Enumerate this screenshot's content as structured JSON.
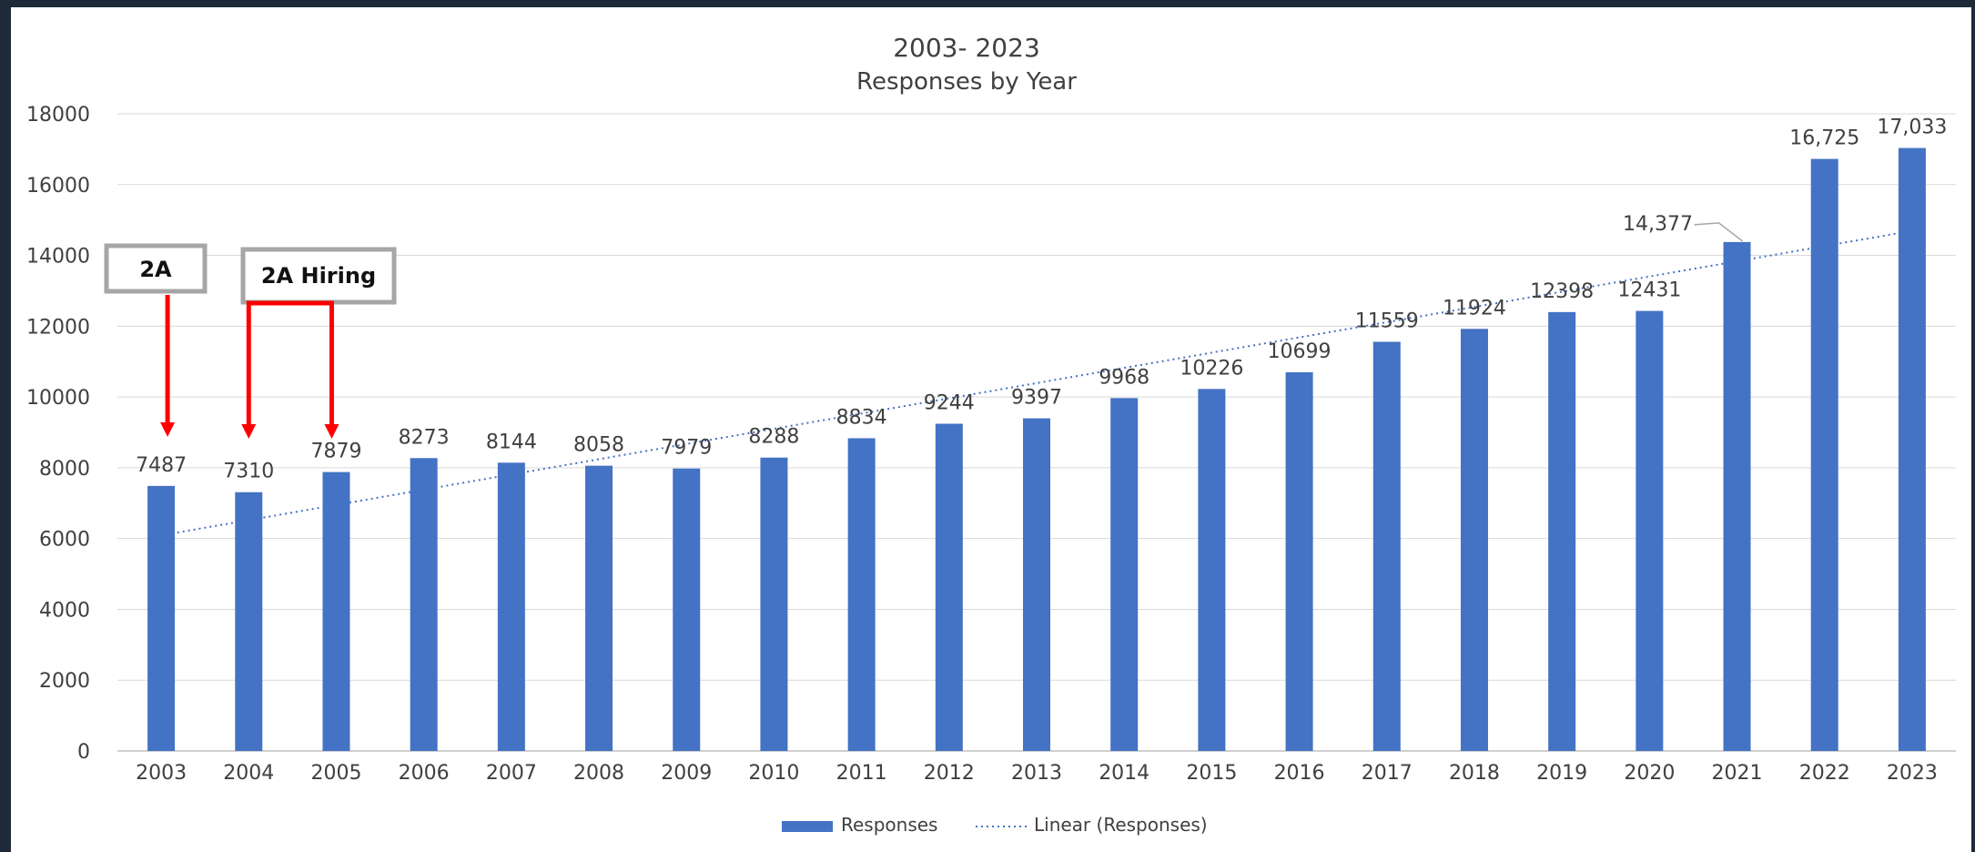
{
  "chart_data": {
    "type": "bar",
    "title": "2003- 2023",
    "subtitle": "Responses by Year",
    "categories": [
      "2003",
      "2004",
      "2005",
      "2006",
      "2007",
      "2008",
      "2009",
      "2010",
      "2011",
      "2012",
      "2013",
      "2014",
      "2015",
      "2016",
      "2017",
      "2018",
      "2019",
      "2020",
      "2021",
      "2022",
      "2023"
    ],
    "series": [
      {
        "name": "Responses",
        "values": [
          7487,
          7310,
          7879,
          8273,
          8144,
          8058,
          7979,
          8288,
          8834,
          9244,
          9397,
          9968,
          10226,
          10699,
          11559,
          11924,
          12398,
          12431,
          14377,
          16725,
          17033
        ],
        "labels": [
          "7487",
          "7310",
          "7879",
          "8273",
          "8144",
          "8058",
          "7979",
          "8288",
          "8834",
          "9244",
          "9397",
          "9968",
          "10226",
          "10699",
          "11559",
          "11924",
          "12398",
          "12431",
          "14,377",
          "16,725",
          "17,033"
        ]
      }
    ],
    "trendline": {
      "name": "Linear (Responses)",
      "type": "linear"
    },
    "ylim": [
      0,
      18000
    ],
    "yticks": [
      "0",
      "2000",
      "4000",
      "6000",
      "8000",
      "10000",
      "12000",
      "14000",
      "16000",
      "18000"
    ],
    "grid": true,
    "legend": "bottom",
    "annotations": [
      {
        "text": "2A",
        "points_to": [
          "2003"
        ]
      },
      {
        "text": "2A Hiring",
        "points_to": [
          "2004",
          "2005"
        ]
      }
    ],
    "colors": {
      "bar": "#4472c4",
      "trend": "#4472c4",
      "annotation_arrow": "#ff0000",
      "annotation_box": "#a6a6a6"
    }
  }
}
